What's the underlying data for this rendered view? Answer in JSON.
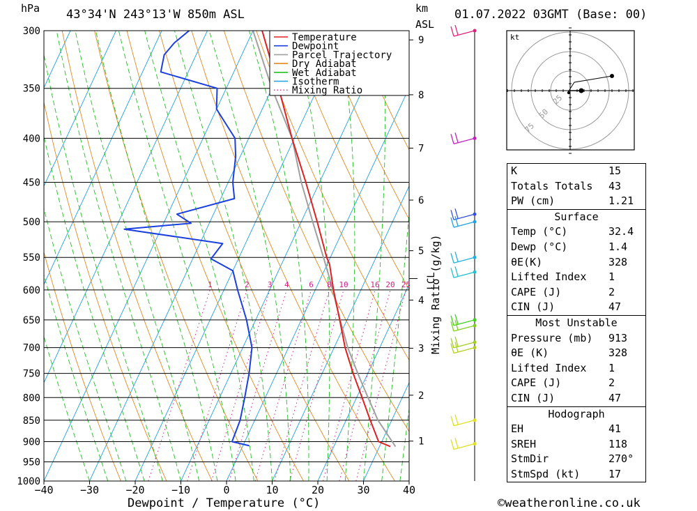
{
  "header": {
    "hpa_label": "hPa",
    "location": "43°34'N  243°13'W  850m  ASL",
    "km_label": "km",
    "asl_label": "ASL",
    "datetime": "01.07.2022  03GMT  (Base: 00)"
  },
  "footer": {
    "xlabel": "Dewpoint / Temperature (°C)",
    "credit": "©weatheronline.co.uk",
    "mixing_label": "Mixing Ratio (g/kg)"
  },
  "chart_data": {
    "type": "skew-t",
    "xlim": [
      -40,
      40
    ],
    "x_ticks": [
      -40,
      -30,
      -20,
      -10,
      0,
      10,
      20,
      30,
      40
    ],
    "pressure_levels": [
      300,
      350,
      400,
      450,
      500,
      550,
      600,
      650,
      700,
      750,
      800,
      850,
      900,
      950,
      1000
    ],
    "km_ticks": [
      1,
      2,
      3,
      4,
      5,
      6,
      7,
      8,
      9
    ],
    "lcl_label": "LCL",
    "lcl_pressure": 582,
    "mixing_ratio_values": [
      1,
      2,
      3,
      4,
      6,
      8,
      10,
      16,
      20,
      25
    ],
    "legend": [
      {
        "name": "Temperature",
        "color": "#e02020",
        "style": "solid"
      },
      {
        "name": "Dewpoint",
        "color": "#1a3fe0",
        "style": "solid"
      },
      {
        "name": "Parcel Trajectory",
        "color": "#a0a0a0",
        "style": "solid"
      },
      {
        "name": "Dry Adiabat",
        "color": "#e08a20",
        "style": "solid"
      },
      {
        "name": "Wet Adiabat",
        "color": "#20c020",
        "style": "solid"
      },
      {
        "name": "Isotherm",
        "color": "#20a0e0",
        "style": "solid"
      },
      {
        "name": "Mixing Ratio",
        "color": "#d0208a",
        "style": "dotted"
      }
    ],
    "temperature": [
      {
        "p": 912,
        "t": 32.4
      },
      {
        "p": 900,
        "t": 29.3
      },
      {
        "p": 850,
        "t": 25.3
      },
      {
        "p": 800,
        "t": 21.2
      },
      {
        "p": 750,
        "t": 16.8
      },
      {
        "p": 700,
        "t": 12.4
      },
      {
        "p": 650,
        "t": 8.4
      },
      {
        "p": 600,
        "t": 4.0
      },
      {
        "p": 560,
        "t": 0.5
      },
      {
        "p": 550,
        "t": -0.8
      },
      {
        "p": 500,
        "t": -6.5
      },
      {
        "p": 450,
        "t": -13.0
      },
      {
        "p": 400,
        "t": -20.5
      },
      {
        "p": 350,
        "t": -28.5
      },
      {
        "p": 300,
        "t": -38.0
      }
    ],
    "dewpoint": [
      {
        "p": 910,
        "t": 1.4
      },
      {
        "p": 900,
        "t": -2.8
      },
      {
        "p": 850,
        "t": -3.2
      },
      {
        "p": 800,
        "t": -4.5
      },
      {
        "p": 750,
        "t": -6.0
      },
      {
        "p": 700,
        "t": -8.0
      },
      {
        "p": 650,
        "t": -12.0
      },
      {
        "p": 600,
        "t": -17.0
      },
      {
        "p": 570,
        "t": -20.0
      },
      {
        "p": 552,
        "t": -26.0
      },
      {
        "p": 530,
        "t": -25.0
      },
      {
        "p": 510,
        "t": -48.0
      },
      {
        "p": 502,
        "t": -34.0
      },
      {
        "p": 490,
        "t": -38.0
      },
      {
        "p": 470,
        "t": -27.0
      },
      {
        "p": 450,
        "t": -29.0
      },
      {
        "p": 420,
        "t": -31.0
      },
      {
        "p": 400,
        "t": -33.0
      },
      {
        "p": 370,
        "t": -40.0
      },
      {
        "p": 350,
        "t": -42.0
      },
      {
        "p": 335,
        "t": -56.0
      },
      {
        "p": 320,
        "t": -57.0
      },
      {
        "p": 310,
        "t": -56.0
      },
      {
        "p": 300,
        "t": -54.0
      }
    ],
    "parcel": [
      {
        "p": 912,
        "t": 33.5
      },
      {
        "p": 850,
        "t": 27.0
      },
      {
        "p": 800,
        "t": 22.5
      },
      {
        "p": 750,
        "t": 17.8
      },
      {
        "p": 700,
        "t": 13.0
      },
      {
        "p": 650,
        "t": 8.5
      },
      {
        "p": 600,
        "t": 3.8
      },
      {
        "p": 582,
        "t": 2.0
      },
      {
        "p": 550,
        "t": -1.5
      },
      {
        "p": 500,
        "t": -7.5
      },
      {
        "p": 450,
        "t": -14.0
      },
      {
        "p": 400,
        "t": -20.5
      },
      {
        "p": 350,
        "t": -30.0
      },
      {
        "p": 300,
        "t": -40.0
      }
    ],
    "wind_barbs": [
      {
        "p": 300,
        "color": "#e0207a"
      },
      {
        "p": 400,
        "color": "#c020c0"
      },
      {
        "p": 490,
        "color": "#3050e0"
      },
      {
        "p": 500,
        "color": "#20a0e0"
      },
      {
        "p": 550,
        "color": "#20b0e0"
      },
      {
        "p": 572,
        "color": "#20c0d0"
      },
      {
        "p": 650,
        "color": "#40d020"
      },
      {
        "p": 660,
        "color": "#80d020"
      },
      {
        "p": 690,
        "color": "#a0d020"
      },
      {
        "p": 700,
        "color": "#b0d020"
      },
      {
        "p": 850,
        "color": "#e0e020"
      },
      {
        "p": 905,
        "color": "#e0e020"
      }
    ],
    "hodograph": {
      "units": "kt",
      "rings": [
        25,
        50,
        75
      ]
    }
  },
  "indices": {
    "general": [
      {
        "label": "K",
        "value": "15"
      },
      {
        "label": "Totals Totals",
        "value": "43"
      },
      {
        "label": "PW (cm)",
        "value": "1.21"
      }
    ],
    "surface": {
      "title": "Surface",
      "rows": [
        {
          "label": "Temp (°C)",
          "value": "32.4"
        },
        {
          "label": "Dewp (°C)",
          "value": "1.4"
        },
        {
          "label": "θE(K)",
          "value": "328"
        },
        {
          "label": "Lifted Index",
          "value": "1"
        },
        {
          "label": "CAPE (J)",
          "value": "2"
        },
        {
          "label": "CIN (J)",
          "value": "47"
        }
      ]
    },
    "most_unstable": {
      "title": "Most Unstable",
      "rows": [
        {
          "label": "Pressure (mb)",
          "value": "913"
        },
        {
          "label": "θE (K)",
          "value": "328"
        },
        {
          "label": "Lifted Index",
          "value": "1"
        },
        {
          "label": "CAPE (J)",
          "value": "2"
        },
        {
          "label": "CIN (J)",
          "value": "47"
        }
      ]
    },
    "hodograph": {
      "title": "Hodograph",
      "rows": [
        {
          "label": "EH",
          "value": "41"
        },
        {
          "label": "SREH",
          "value": "118"
        },
        {
          "label": "StmDir",
          "value": "270°"
        },
        {
          "label": "StmSpd (kt)",
          "value": "17"
        }
      ]
    }
  },
  "colors": {
    "isobar": "#000000",
    "temperature": "#e02020",
    "dewpoint": "#1a3fe0",
    "parcel": "#a0a0a0",
    "dry_adiabat": "#e08a20",
    "wet_adiabat": "#20c020",
    "isotherm": "#20a0e0",
    "mixing_ratio": "#d0208a"
  }
}
